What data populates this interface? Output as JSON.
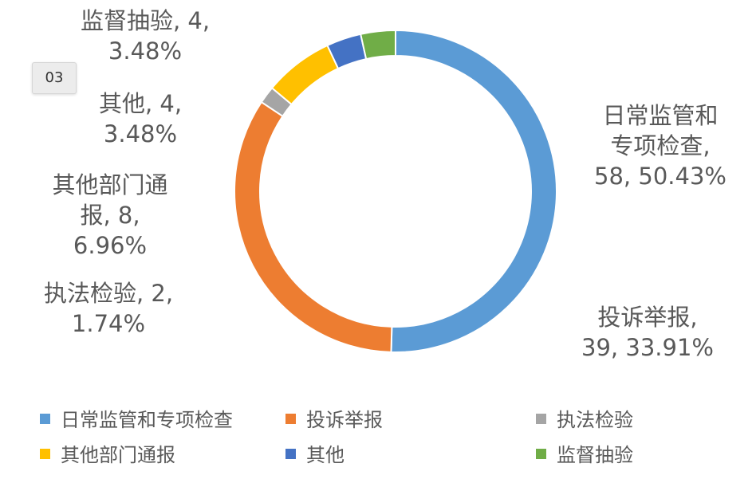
{
  "badge": "03",
  "chart_data": {
    "type": "pie",
    "donut": true,
    "categories": [
      "日常监管和专项检查",
      "投诉举报",
      "执法检验",
      "其他部门通报",
      "其他",
      "监督抽验"
    ],
    "values": [
      58,
      39,
      2,
      8,
      4,
      4
    ],
    "percents": [
      "50.43%",
      "33.91%",
      "1.74%",
      "6.96%",
      "3.48%",
      "3.48%"
    ],
    "colors": [
      "#5B9BD5",
      "#ED7D31",
      "#A5A5A5",
      "#FFC000",
      "#4472C4",
      "#70AD47"
    ],
    "data_labels": [
      [
        "日常监管和",
        "专项检查,",
        "58, 50.43%"
      ],
      [
        "投诉举报,",
        "39, 33.91%"
      ],
      [
        "执法检验, 2,",
        "1.74%"
      ],
      [
        "其他部门通",
        "报, 8,",
        "6.96%"
      ],
      [
        "其他, 4,",
        "3.48%"
      ],
      [
        "监督抽验, 4,",
        "3.48%"
      ]
    ],
    "legend": {
      "position": "bottom",
      "entries": [
        "日常监管和专项检查",
        "投诉举报",
        "执法检验",
        "其他部门通报",
        "其他",
        "监督抽验"
      ]
    }
  }
}
